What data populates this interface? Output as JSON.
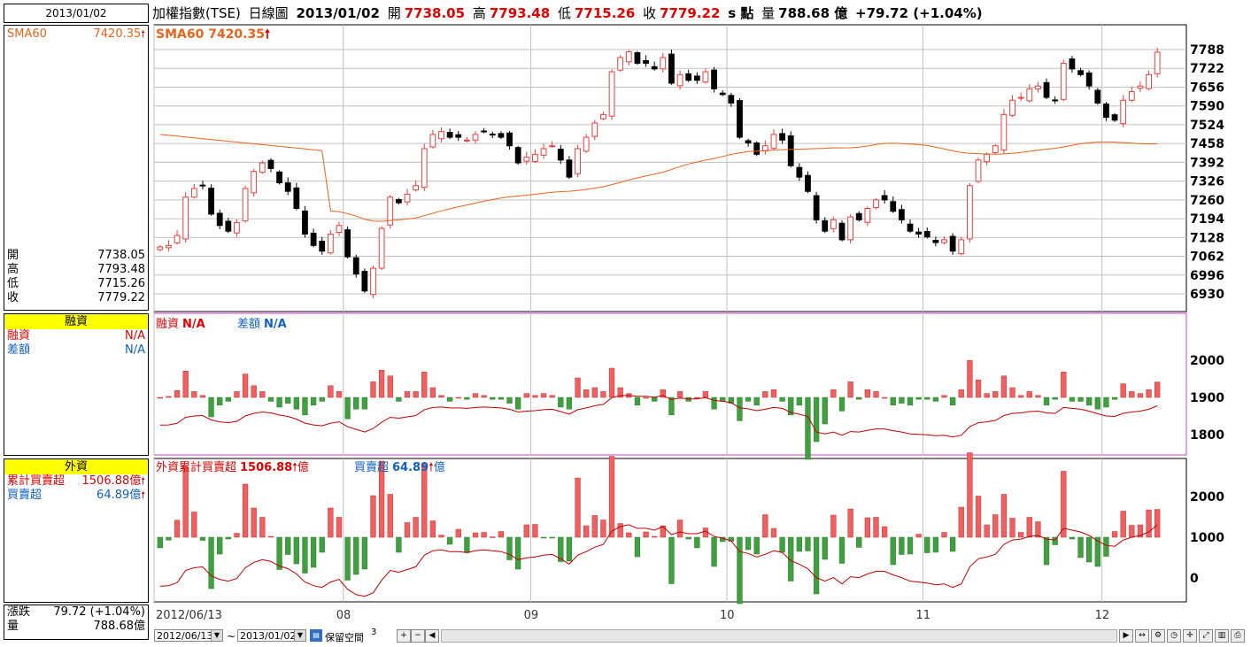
{
  "left": {
    "date": "2013/01/02",
    "sma_label": "SMA60",
    "sma_value": "7420.35",
    "ohlc": [
      {
        "label": "開",
        "value": "7738.05"
      },
      {
        "label": "高",
        "value": "7793.48"
      },
      {
        "label": "低",
        "value": "7715.26"
      },
      {
        "label": "收",
        "value": "7779.22"
      }
    ],
    "margin_header": "融資",
    "margin_rows": [
      {
        "label": "融資",
        "value": "N/A"
      },
      {
        "label": "差額",
        "value": "N/A"
      }
    ],
    "foreign_header": "外資",
    "foreign_rows": [
      {
        "label": "累計買賣超",
        "value": "1506.88億"
      },
      {
        "label": "買賣超",
        "value": "64.89億"
      }
    ],
    "bottom_rows": [
      {
        "label": "漲跌",
        "value": "79.72 (+1.04%)"
      },
      {
        "label": "量",
        "value": "788.68億"
      }
    ]
  },
  "topbar": {
    "title": "加權指數(TSE)",
    "chart_type": "日線圖",
    "date": "2013/01/02",
    "open_label": "開",
    "open": "7738.05",
    "high_label": "高",
    "high": "7793.48",
    "low_label": "低",
    "low": "7715.26",
    "close_label": "收",
    "close": "7779.22",
    "unit": "s 點",
    "vol_label": "量",
    "volume": "788.68 億",
    "change": "+79.72 (+1.04%)"
  },
  "price_panel": {
    "sma_legend": "SMA60 7420.35",
    "y_ticks": [
      "7788",
      "7722",
      "7656",
      "7590",
      "7524",
      "7458",
      "7392",
      "7326",
      "7260",
      "7194",
      "7128",
      "7062",
      "6996",
      "6930"
    ]
  },
  "margin_panel": {
    "legend1_label": "融資",
    "legend1_value": "N/A",
    "legend2_label": "差額",
    "legend2_value": "N/A",
    "y_ticks": [
      "2000",
      "1900",
      "1800"
    ]
  },
  "foreign_panel": {
    "legend1_label": "外資累計買賣超",
    "legend1_value": "1506.88",
    "legend1_unit": "億",
    "legend2_label": "買賣超",
    "legend2_value": "64.89",
    "legend2_unit": "億",
    "y_ticks": [
      "2000",
      "1000",
      "0"
    ]
  },
  "x_axis": {
    "labels": [
      "2012/06/13",
      "08",
      "09",
      "10",
      "11",
      "12"
    ]
  },
  "toolbar": {
    "start_date": "2012/06/13",
    "tilde": "~",
    "end_date": "2013/01/02",
    "reserve_label": "保留空間",
    "reserve_value": "3"
  },
  "colors": {
    "up": "#e8403c",
    "down": "#000000",
    "sma": "#e8641e",
    "pos_bar": "#f06060",
    "neg_bar": "#40a040",
    "line": "#c00000",
    "magenta_border": "#d040d0"
  },
  "chart_data": [
    {
      "type": "candlestick",
      "title": "加權指數(TSE) 日線圖",
      "ylim": [
        6930,
        7800
      ],
      "series": [
        {
          "name": "close",
          "values": [
            7095,
            7100,
            7135,
            7270,
            7300,
            7310,
            7210,
            7170,
            7150,
            7180,
            7300,
            7360,
            7390,
            7370,
            7320,
            7290,
            7230,
            7140,
            7100,
            7080,
            7140,
            7170,
            7060,
            7000,
            6940,
            7020,
            7160,
            7270,
            7250,
            7280,
            7310,
            7440,
            7490,
            7500,
            7480,
            7480,
            7470,
            7490,
            7500,
            7490,
            7480,
            7450,
            7390,
            7410,
            7420,
            7440,
            7450,
            7400,
            7340,
            7440,
            7480,
            7530,
            7560,
            7710,
            7760,
            7780,
            7740,
            7740,
            7720,
            7760,
            7670,
            7700,
            7680,
            7680,
            7710,
            7650,
            7630,
            7600,
            7480,
            7460,
            7420,
            7450,
            7490,
            7470,
            7380,
            7340,
            7290,
            7190,
            7150,
            7190,
            7120,
            7200,
            7190,
            7230,
            7260,
            7260,
            7220,
            7190,
            7150,
            7140,
            7130,
            7110,
            7120,
            7080,
            7120,
            7310,
            7400,
            7420,
            7450,
            7560,
            7610,
            7620,
            7650,
            7660,
            7620,
            7610,
            7740,
            7720,
            7700,
            7660,
            7600,
            7550,
            7540,
            7610,
            7640,
            7660,
            7700,
            7779
          ]
        }
      ],
      "sma60_last": 7420.35
    },
    {
      "type": "bar",
      "title": "融資",
      "ylim": [
        1750,
        2050
      ],
      "series": [
        {
          "name": "融資",
          "values": []
        }
      ]
    },
    {
      "type": "bar",
      "title": "外資累計買賣超",
      "ylim": [
        -500,
        2500
      ],
      "series": [
        {
          "name": "外資累計買賣超",
          "last": 1506.88
        },
        {
          "name": "買賣超",
          "last": 64.89
        }
      ]
    }
  ]
}
